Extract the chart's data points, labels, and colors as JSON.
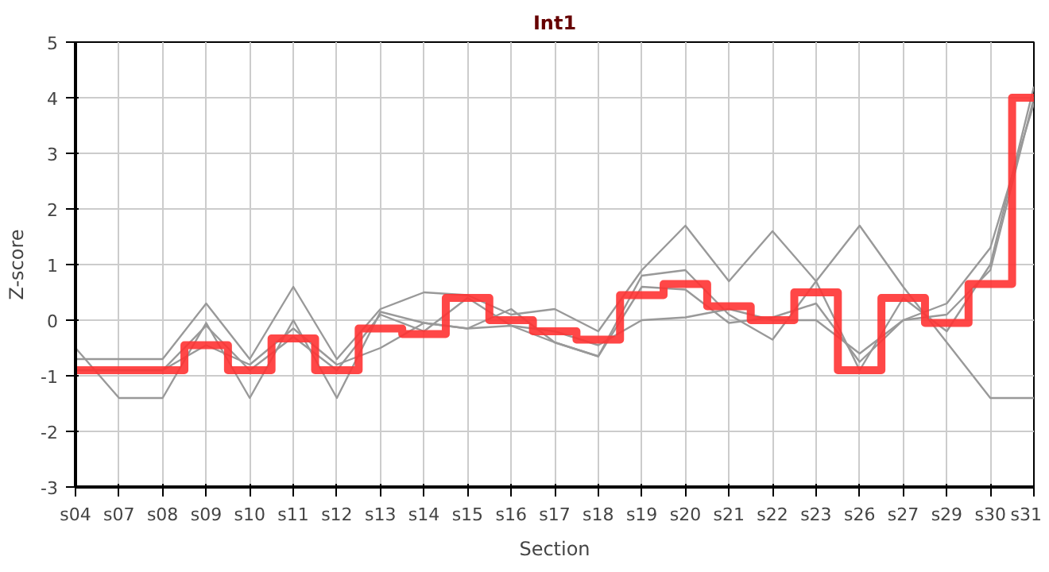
{
  "chart_data": {
    "type": "line",
    "title": "Int1",
    "xlabel": "Section",
    "ylabel": "Z-score",
    "categories": [
      "s04",
      "s07",
      "s08",
      "s09",
      "s10",
      "s11",
      "s12",
      "s13",
      "s14",
      "s15",
      "s16",
      "s17",
      "s18",
      "s19",
      "s20",
      "s21",
      "s22",
      "s23",
      "s26",
      "s27",
      "s29",
      "s30",
      "s31"
    ],
    "ylim": [
      -3,
      5
    ],
    "yticks": [
      -3,
      -2,
      -1,
      0,
      1,
      2,
      3,
      4,
      5
    ],
    "grid": true,
    "series": [
      {
        "color": "#999999",
        "values": [
          -0.7,
          -0.7,
          -0.7,
          0.3,
          -0.7,
          0.6,
          -0.7,
          0.2,
          0.5,
          0.45,
          0.1,
          0.2,
          -0.2,
          0.9,
          1.7,
          0.7,
          1.6,
          0.7,
          1.7,
          0.6,
          -0.4,
          -1.4,
          -1.4
        ]
      },
      {
        "color": "#999999",
        "values": [
          -0.5,
          -1.4,
          -1.4,
          -0.05,
          -1.4,
          0.0,
          -1.4,
          0.15,
          -0.05,
          -0.15,
          0.2,
          -0.4,
          -0.65,
          0.8,
          0.9,
          0.1,
          -0.35,
          0.7,
          -0.9,
          0.4,
          -0.2,
          1.0,
          4.2
        ]
      },
      {
        "color": "#999999",
        "values": [
          -0.9,
          -0.9,
          -0.9,
          -0.45,
          -0.8,
          -0.15,
          -0.8,
          -0.5,
          -0.05,
          -0.15,
          -0.1,
          -0.2,
          -0.45,
          0.0,
          0.05,
          0.2,
          0.0,
          0.0,
          -0.6,
          0.0,
          0.3,
          1.3,
          3.9
        ]
      },
      {
        "color": "#999999",
        "values": [
          -0.9,
          -0.9,
          -0.9,
          -0.1,
          -0.9,
          -0.3,
          -0.9,
          0.1,
          -0.2,
          0.4,
          -0.1,
          -0.4,
          -0.65,
          0.6,
          0.55,
          -0.05,
          0.05,
          0.3,
          -0.75,
          0.0,
          0.1,
          0.9,
          4.0
        ]
      },
      {
        "type": "step",
        "color": "#ff3333",
        "values": [
          -0.9,
          -0.9,
          -0.9,
          -0.45,
          -0.9,
          -0.33,
          -0.9,
          -0.15,
          -0.25,
          0.4,
          0.0,
          -0.2,
          -0.35,
          0.45,
          0.65,
          0.25,
          0.0,
          0.5,
          -0.9,
          0.4,
          -0.05,
          0.65,
          4.0
        ]
      }
    ]
  }
}
